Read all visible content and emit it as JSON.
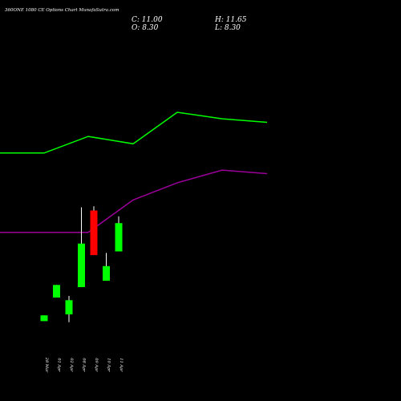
{
  "chart_data": {
    "type": "candlestick",
    "title": "360ONE 1080  CE Options  Chart MunafaSutra.com",
    "ohlc_readout": {
      "close_label": "C: 11.00",
      "high_label": "H: 11.65",
      "open_label": "O: 8.30",
      "low_label": "L: 8.30"
    },
    "categories": [
      "28 Mar",
      "01 Apr",
      "02 Apr",
      "08 Apr",
      "09 Apr",
      "10 Apr",
      "11 Apr"
    ],
    "candles": [
      {
        "date": "28 Mar",
        "open": 1.65,
        "high": 2.2,
        "low": 1.65,
        "close": 2.2
      },
      {
        "date": "01 Apr",
        "open": 3.9,
        "high": 5.1,
        "low": 3.9,
        "close": 5.1
      },
      {
        "date": "02 Apr",
        "open": 2.3,
        "high": 4.05,
        "low": 1.55,
        "close": 3.65
      },
      {
        "date": "08 Apr",
        "open": 4.9,
        "high": 12.5,
        "low": 4.9,
        "close": 9.05
      },
      {
        "date": "09 Apr",
        "open": 12.2,
        "high": 12.6,
        "low": 7.95,
        "close": 7.95
      },
      {
        "date": "10 Apr",
        "open": 5.5,
        "high": 8.15,
        "low": 5.5,
        "close": 6.9
      },
      {
        "date": "11 Apr",
        "open": 8.3,
        "high": 11.65,
        "low": 8.3,
        "close": 11.0
      }
    ],
    "colors": {
      "up": "#00ff00",
      "down": "#ff0000",
      "wick": "#ffffff",
      "background": "#000000"
    },
    "series": [
      {
        "color": "#00ff00",
        "values": [
          53.6,
          53.6,
          59.2,
          56.7,
          67.4,
          65.2,
          64.0
        ]
      },
      {
        "color": "#9b009b",
        "values": [
          26.7,
          26.7,
          26.7,
          37.7,
          43.5,
          47.8,
          46.6
        ]
      }
    ],
    "ylim": [
      0,
      100
    ]
  }
}
